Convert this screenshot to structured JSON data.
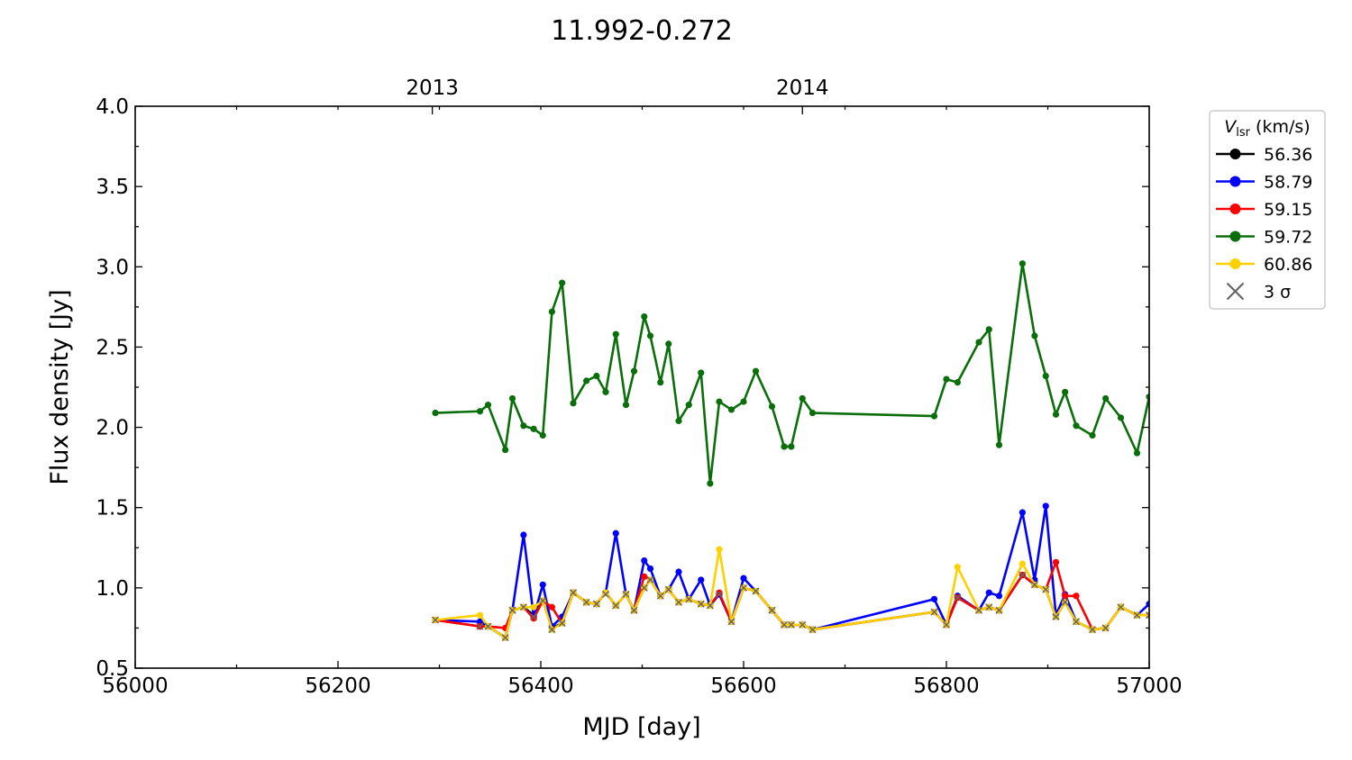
{
  "chart_data": {
    "type": "line",
    "title": "11.992-0.272",
    "xlabel": "MJD [day]",
    "ylabel": "Flux density [Jy]",
    "xlim": [
      56000,
      57000
    ],
    "ylim": [
      0.5,
      4.0
    ],
    "x_ticks": [
      56000,
      56200,
      56400,
      56600,
      56800,
      57000
    ],
    "x_tick_labels": [
      "56000",
      "56200",
      "56400",
      "56600",
      "56800",
      "57000"
    ],
    "y_ticks": [
      0.5,
      1.0,
      1.5,
      2.0,
      2.5,
      3.0,
      3.5,
      4.0
    ],
    "y_tick_labels": [
      "0.5",
      "1.0",
      "1.5",
      "2.0",
      "2.5",
      "3.0",
      "3.5",
      "4.0"
    ],
    "top_axis": {
      "ticks": [
        56293,
        56658
      ],
      "labels": [
        "2013",
        "2014"
      ]
    },
    "grid": false,
    "legend": {
      "title_main": "V",
      "title_sub": "lsr",
      "title_unit": " (km/s)",
      "placement": "outside-right-top",
      "sigma_label": "3 σ"
    },
    "sigma_marker_color": "#666666",
    "series": [
      {
        "name": "56.36",
        "color": "#000000",
        "points": [
          [
            56296,
            0.8
          ],
          [
            56340,
            0.76
          ],
          [
            56348,
            0.76
          ],
          [
            56365,
            0.69
          ],
          [
            56372,
            0.86
          ],
          [
            56383,
            0.88
          ],
          [
            56393,
            0.83
          ],
          [
            56402,
            0.92
          ],
          [
            56411,
            0.75
          ],
          [
            56421,
            0.78
          ],
          [
            56432,
            0.97
          ],
          [
            56445,
            0.91
          ],
          [
            56455,
            0.9
          ],
          [
            56464,
            0.97
          ],
          [
            56474,
            0.89
          ],
          [
            56484,
            0.96
          ],
          [
            56492,
            0.86
          ],
          [
            56502,
            1.0
          ],
          [
            56508,
            1.05
          ],
          [
            56518,
            0.95
          ],
          [
            56526,
            0.99
          ],
          [
            56536,
            0.91
          ],
          [
            56546,
            0.93
          ],
          [
            56558,
            0.9
          ],
          [
            56567,
            0.89
          ],
          [
            56576,
            0.96
          ],
          [
            56588,
            0.79
          ],
          [
            56600,
            1.0
          ],
          [
            56612,
            0.98
          ],
          [
            56628,
            0.86
          ],
          [
            56640,
            0.77
          ],
          [
            56647,
            0.77
          ],
          [
            56658,
            0.77
          ],
          [
            56668,
            0.74
          ],
          [
            56788,
            0.85
          ],
          [
            56800,
            0.77
          ],
          [
            56811,
            0.94
          ],
          [
            56832,
            0.86
          ],
          [
            56842,
            0.88
          ],
          [
            56852,
            0.86
          ],
          [
            56875,
            1.08
          ],
          [
            56887,
            1.02
          ],
          [
            56898,
            0.99
          ],
          [
            56908,
            0.82
          ],
          [
            56917,
            0.91
          ],
          [
            56928,
            0.79
          ],
          [
            56944,
            0.74
          ],
          [
            56957,
            0.75
          ],
          [
            56972,
            0.88
          ],
          [
            56988,
            0.83
          ],
          [
            57000,
            0.83
          ]
        ]
      },
      {
        "name": "58.79",
        "color": "#0000ff",
        "points": [
          [
            56296,
            0.8
          ],
          [
            56340,
            0.79
          ],
          [
            56348,
            0.76
          ],
          [
            56365,
            0.69
          ],
          [
            56372,
            0.86
          ],
          [
            56383,
            1.33
          ],
          [
            56393,
            0.82
          ],
          [
            56402,
            1.02
          ],
          [
            56411,
            0.76
          ],
          [
            56421,
            0.82
          ],
          [
            56432,
            0.97
          ],
          [
            56445,
            0.91
          ],
          [
            56455,
            0.9
          ],
          [
            56464,
            0.97
          ],
          [
            56474,
            1.34
          ],
          [
            56484,
            0.96
          ],
          [
            56492,
            0.86
          ],
          [
            56502,
            1.17
          ],
          [
            56508,
            1.12
          ],
          [
            56518,
            0.95
          ],
          [
            56526,
            0.99
          ],
          [
            56536,
            1.1
          ],
          [
            56546,
            0.93
          ],
          [
            56558,
            1.05
          ],
          [
            56567,
            0.89
          ],
          [
            56576,
            0.96
          ],
          [
            56588,
            0.79
          ],
          [
            56600,
            1.06
          ],
          [
            56612,
            0.98
          ],
          [
            56628,
            0.86
          ],
          [
            56640,
            0.77
          ],
          [
            56647,
            0.77
          ],
          [
            56658,
            0.77
          ],
          [
            56668,
            0.74
          ],
          [
            56788,
            0.93
          ],
          [
            56800,
            0.77
          ],
          [
            56811,
            0.95
          ],
          [
            56832,
            0.86
          ],
          [
            56842,
            0.97
          ],
          [
            56852,
            0.95
          ],
          [
            56875,
            1.47
          ],
          [
            56887,
            1.05
          ],
          [
            56898,
            1.51
          ],
          [
            56908,
            0.83
          ],
          [
            56917,
            0.96
          ],
          [
            56928,
            0.79
          ],
          [
            56944,
            0.74
          ],
          [
            56957,
            0.75
          ],
          [
            56972,
            0.88
          ],
          [
            56988,
            0.83
          ],
          [
            57000,
            0.9
          ]
        ]
      },
      {
        "name": "59.15",
        "color": "#ff0000",
        "points": [
          [
            56296,
            0.8
          ],
          [
            56340,
            0.76
          ],
          [
            56348,
            0.76
          ],
          [
            56365,
            0.75
          ],
          [
            56372,
            0.86
          ],
          [
            56383,
            0.88
          ],
          [
            56393,
            0.81
          ],
          [
            56402,
            0.92
          ],
          [
            56411,
            0.88
          ],
          [
            56421,
            0.78
          ],
          [
            56432,
            0.97
          ],
          [
            56445,
            0.91
          ],
          [
            56455,
            0.9
          ],
          [
            56464,
            0.97
          ],
          [
            56474,
            0.89
          ],
          [
            56484,
            0.96
          ],
          [
            56492,
            0.86
          ],
          [
            56502,
            1.07
          ],
          [
            56508,
            1.05
          ],
          [
            56518,
            0.95
          ],
          [
            56526,
            0.99
          ],
          [
            56536,
            0.91
          ],
          [
            56546,
            0.93
          ],
          [
            56558,
            0.9
          ],
          [
            56567,
            0.89
          ],
          [
            56576,
            0.97
          ],
          [
            56588,
            0.79
          ],
          [
            56600,
            1.0
          ],
          [
            56612,
            0.98
          ],
          [
            56628,
            0.86
          ],
          [
            56640,
            0.77
          ],
          [
            56647,
            0.77
          ],
          [
            56658,
            0.77
          ],
          [
            56668,
            0.74
          ],
          [
            56788,
            0.85
          ],
          [
            56800,
            0.77
          ],
          [
            56811,
            0.94
          ],
          [
            56832,
            0.86
          ],
          [
            56842,
            0.88
          ],
          [
            56852,
            0.86
          ],
          [
            56875,
            1.08
          ],
          [
            56887,
            1.02
          ],
          [
            56898,
            0.99
          ],
          [
            56908,
            1.16
          ],
          [
            56917,
            0.95
          ],
          [
            56928,
            0.95
          ],
          [
            56944,
            0.74
          ],
          [
            56957,
            0.75
          ],
          [
            56972,
            0.88
          ],
          [
            56988,
            0.83
          ],
          [
            57000,
            0.83
          ]
        ]
      },
      {
        "name": "59.72",
        "color": "#0a6e0a",
        "points": [
          [
            56296,
            2.09
          ],
          [
            56340,
            2.1
          ],
          [
            56348,
            2.14
          ],
          [
            56365,
            1.86
          ],
          [
            56372,
            2.18
          ],
          [
            56383,
            2.01
          ],
          [
            56393,
            1.99
          ],
          [
            56402,
            1.95
          ],
          [
            56411,
            2.72
          ],
          [
            56421,
            2.9
          ],
          [
            56432,
            2.15
          ],
          [
            56445,
            2.29
          ],
          [
            56455,
            2.32
          ],
          [
            56464,
            2.22
          ],
          [
            56474,
            2.58
          ],
          [
            56484,
            2.14
          ],
          [
            56492,
            2.35
          ],
          [
            56502,
            2.69
          ],
          [
            56508,
            2.57
          ],
          [
            56518,
            2.28
          ],
          [
            56526,
            2.52
          ],
          [
            56536,
            2.04
          ],
          [
            56546,
            2.14
          ],
          [
            56558,
            2.34
          ],
          [
            56567,
            1.65
          ],
          [
            56576,
            2.16
          ],
          [
            56588,
            2.11
          ],
          [
            56600,
            2.16
          ],
          [
            56612,
            2.35
          ],
          [
            56628,
            2.13
          ],
          [
            56640,
            1.88
          ],
          [
            56647,
            1.88
          ],
          [
            56658,
            2.18
          ],
          [
            56668,
            2.09
          ],
          [
            56788,
            2.07
          ],
          [
            56800,
            2.3
          ],
          [
            56811,
            2.28
          ],
          [
            56832,
            2.53
          ],
          [
            56842,
            2.61
          ],
          [
            56852,
            1.89
          ],
          [
            56875,
            3.02
          ],
          [
            56887,
            2.57
          ],
          [
            56898,
            2.32
          ],
          [
            56908,
            2.08
          ],
          [
            56917,
            2.22
          ],
          [
            56928,
            2.01
          ],
          [
            56944,
            1.95
          ],
          [
            56957,
            2.18
          ],
          [
            56972,
            2.06
          ],
          [
            56988,
            1.84
          ],
          [
            57000,
            2.19
          ]
        ]
      },
      {
        "name": "60.86",
        "color": "#ffd000",
        "points": [
          [
            56296,
            0.8
          ],
          [
            56340,
            0.83
          ],
          [
            56348,
            0.76
          ],
          [
            56365,
            0.69
          ],
          [
            56372,
            0.86
          ],
          [
            56383,
            0.88
          ],
          [
            56393,
            0.88
          ],
          [
            56402,
            0.92
          ],
          [
            56411,
            0.74
          ],
          [
            56421,
            0.78
          ],
          [
            56432,
            0.97
          ],
          [
            56445,
            0.91
          ],
          [
            56455,
            0.9
          ],
          [
            56464,
            0.97
          ],
          [
            56474,
            0.89
          ],
          [
            56484,
            0.96
          ],
          [
            56492,
            0.86
          ],
          [
            56502,
            1.0
          ],
          [
            56508,
            1.05
          ],
          [
            56518,
            0.95
          ],
          [
            56526,
            0.99
          ],
          [
            56536,
            0.91
          ],
          [
            56546,
            0.93
          ],
          [
            56558,
            0.9
          ],
          [
            56567,
            0.89
          ],
          [
            56576,
            1.24
          ],
          [
            56588,
            0.79
          ],
          [
            56600,
            1.0
          ],
          [
            56612,
            0.98
          ],
          [
            56628,
            0.86
          ],
          [
            56640,
            0.77
          ],
          [
            56647,
            0.77
          ],
          [
            56658,
            0.77
          ],
          [
            56668,
            0.74
          ],
          [
            56788,
            0.85
          ],
          [
            56800,
            0.77
          ],
          [
            56811,
            1.13
          ],
          [
            56832,
            0.86
          ],
          [
            56842,
            0.88
          ],
          [
            56852,
            0.86
          ],
          [
            56875,
            1.15
          ],
          [
            56887,
            1.02
          ],
          [
            56898,
            0.99
          ],
          [
            56908,
            0.82
          ],
          [
            56917,
            0.91
          ],
          [
            56928,
            0.79
          ],
          [
            56944,
            0.74
          ],
          [
            56957,
            0.75
          ],
          [
            56972,
            0.88
          ],
          [
            56988,
            0.83
          ],
          [
            57000,
            0.83
          ]
        ]
      }
    ],
    "sigma_points": [
      [
        56296,
        0.8
      ],
      [
        56340,
        0.76
      ],
      [
        56348,
        0.76
      ],
      [
        56365,
        0.69
      ],
      [
        56372,
        0.86
      ],
      [
        56383,
        0.88
      ],
      [
        56393,
        0.82
      ],
      [
        56402,
        0.92
      ],
      [
        56411,
        0.74
      ],
      [
        56421,
        0.78
      ],
      [
        56432,
        0.97
      ],
      [
        56445,
        0.91
      ],
      [
        56455,
        0.9
      ],
      [
        56464,
        0.96
      ],
      [
        56474,
        0.89
      ],
      [
        56484,
        0.96
      ],
      [
        56492,
        0.86
      ],
      [
        56502,
        1.0
      ],
      [
        56508,
        1.05
      ],
      [
        56518,
        0.95
      ],
      [
        56526,
        0.99
      ],
      [
        56536,
        0.91
      ],
      [
        56546,
        0.93
      ],
      [
        56558,
        0.9
      ],
      [
        56567,
        0.89
      ],
      [
        56576,
        0.96
      ],
      [
        56588,
        0.79
      ],
      [
        56600,
        1.0
      ],
      [
        56612,
        0.98
      ],
      [
        56628,
        0.86
      ],
      [
        56640,
        0.77
      ],
      [
        56647,
        0.77
      ],
      [
        56658,
        0.77
      ],
      [
        56668,
        0.74
      ],
      [
        56788,
        0.85
      ],
      [
        56800,
        0.77
      ],
      [
        56811,
        0.94
      ],
      [
        56832,
        0.86
      ],
      [
        56842,
        0.88
      ],
      [
        56852,
        0.86
      ],
      [
        56875,
        1.08
      ],
      [
        56887,
        1.02
      ],
      [
        56898,
        0.99
      ],
      [
        56908,
        0.82
      ],
      [
        56917,
        0.91
      ],
      [
        56928,
        0.79
      ],
      [
        56944,
        0.74
      ],
      [
        56957,
        0.75
      ],
      [
        56972,
        0.88
      ],
      [
        56988,
        0.83
      ],
      [
        57000,
        0.83
      ]
    ]
  }
}
